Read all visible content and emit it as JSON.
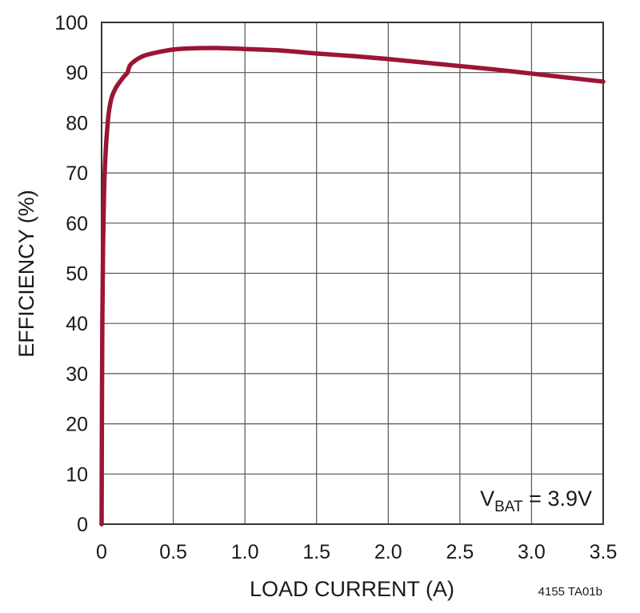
{
  "chart_data": {
    "type": "line",
    "title": "",
    "xlabel": "LOAD CURRENT (A)",
    "ylabel": "EFFICIENCY (%)",
    "xlim": [
      0,
      3.5
    ],
    "ylim": [
      0,
      100
    ],
    "x_ticks": [
      "0",
      "0.5",
      "1.0",
      "1.5",
      "2.0",
      "2.5",
      "3.0",
      "3.5"
    ],
    "y_ticks": [
      "0",
      "10",
      "20",
      "30",
      "40",
      "50",
      "60",
      "70",
      "80",
      "90",
      "100"
    ],
    "grid": true,
    "line_color": "#9b1535",
    "series": [
      {
        "x": [
          0.0,
          0.002,
          0.005,
          0.01,
          0.015,
          0.02,
          0.03,
          0.04,
          0.05,
          0.07,
          0.1,
          0.15,
          0.18,
          0.2,
          0.25,
          0.3,
          0.4,
          0.5,
          0.6,
          0.8,
          1.0,
          1.25,
          1.5,
          1.75,
          2.0,
          2.25,
          2.5,
          2.75,
          3.0,
          3.25,
          3.5
        ],
        "y": [
          0,
          20,
          40,
          55,
          63,
          69,
          75,
          79,
          82,
          85,
          87,
          89,
          90,
          91.5,
          92.7,
          93.4,
          94.1,
          94.6,
          94.8,
          94.9,
          94.7,
          94.4,
          93.8,
          93.3,
          92.7,
          92.0,
          91.3,
          90.6,
          89.8,
          89.0,
          88.2
        ]
      }
    ],
    "annotation": {
      "main": "V",
      "subscript": "BAT",
      "rest": " = 3.9V",
      "position": "bottom-right"
    },
    "figure_id": "4155 TA01b"
  }
}
